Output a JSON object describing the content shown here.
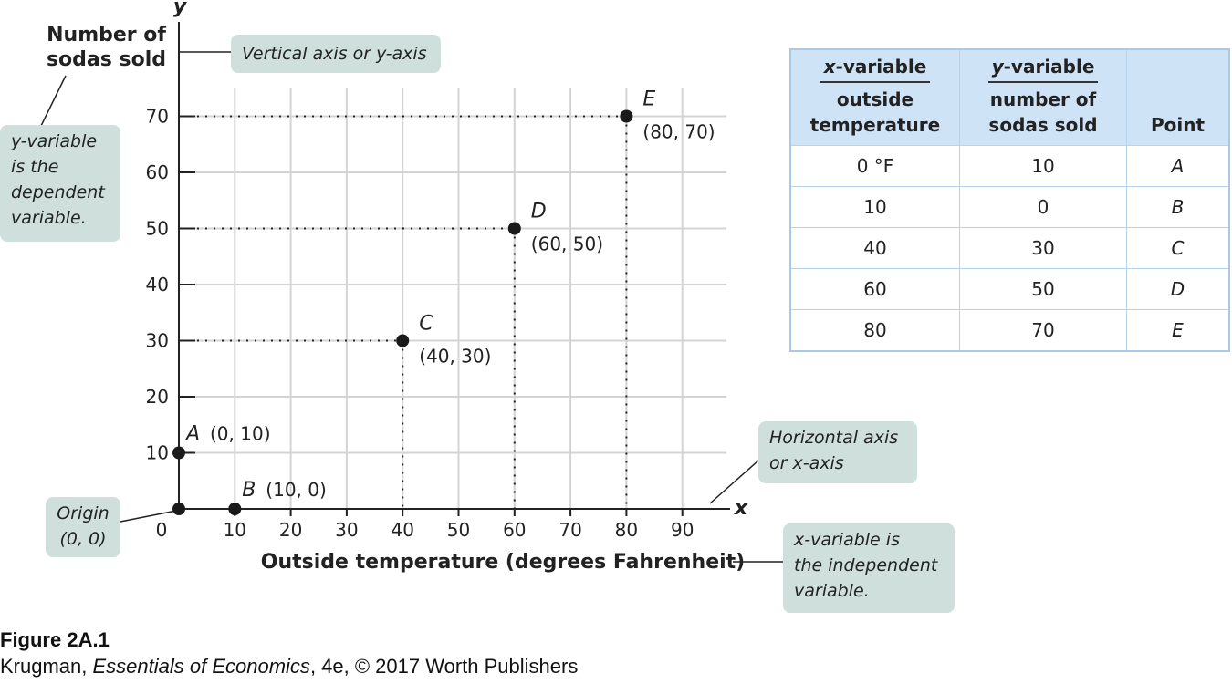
{
  "chart_data": {
    "type": "scatter",
    "xlabel": "Outside temperature (degrees Fahrenheit)",
    "ylabel": "Number of sodas sold",
    "x_axis_letter": "x",
    "y_axis_letter": "y",
    "xlim": [
      0,
      95
    ],
    "ylim": [
      0,
      75
    ],
    "x_ticks": [
      0,
      10,
      20,
      30,
      40,
      50,
      60,
      70,
      80,
      90
    ],
    "y_ticks": [
      10,
      20,
      30,
      40,
      50,
      60,
      70
    ],
    "grid": true,
    "points": [
      {
        "name": "A",
        "x": 0,
        "y": 10,
        "label": "(0, 10)"
      },
      {
        "name": "B",
        "x": 10,
        "y": 0,
        "label": "(10, 0)"
      },
      {
        "name": "C",
        "x": 40,
        "y": 30,
        "label": "(40, 30)"
      },
      {
        "name": "D",
        "x": 60,
        "y": 50,
        "label": "(60, 50)"
      },
      {
        "name": "E",
        "x": 80,
        "y": 70,
        "label": "(80, 70)"
      }
    ],
    "origin_point": {
      "x": 0,
      "y": 0
    }
  },
  "callouts": {
    "vertical_axis": "Vertical axis or y-axis",
    "y_variable": [
      "y-variable",
      "is the",
      "dependent",
      "variable."
    ],
    "origin": [
      "Origin",
      "(0, 0)"
    ],
    "horizontal_axis": [
      "Horizontal axis",
      "or x-axis"
    ],
    "x_variable": [
      "x-variable is",
      "the independent",
      "variable."
    ]
  },
  "table": {
    "col1": {
      "var_prefix": "x",
      "var_suffix": "-variable",
      "desc": [
        "outside",
        "temperature"
      ]
    },
    "col2": {
      "var_prefix": "y",
      "var_suffix": "-variable",
      "desc": [
        "number of",
        "sodas sold"
      ]
    },
    "col3_header": "Point",
    "rows": [
      {
        "x": "0 °F",
        "y": "10",
        "point": "A"
      },
      {
        "x": "10",
        "y": "0",
        "point": "B"
      },
      {
        "x": "40",
        "y": "30",
        "point": "C"
      },
      {
        "x": "60",
        "y": "50",
        "point": "D"
      },
      {
        "x": "80",
        "y": "70",
        "point": "E"
      }
    ]
  },
  "caption": {
    "figure": "Figure 2A.1",
    "author": "Krugman, ",
    "book": "Essentials of Economics",
    "rest": ", 4e, © 2017 Worth Publishers"
  },
  "colors": {
    "point": "#1a1a1a",
    "grid": "#d4d4d4",
    "callout": "#cfe0dc",
    "table_header": "#cfe3f6",
    "table_border": "#a9c9e6"
  }
}
